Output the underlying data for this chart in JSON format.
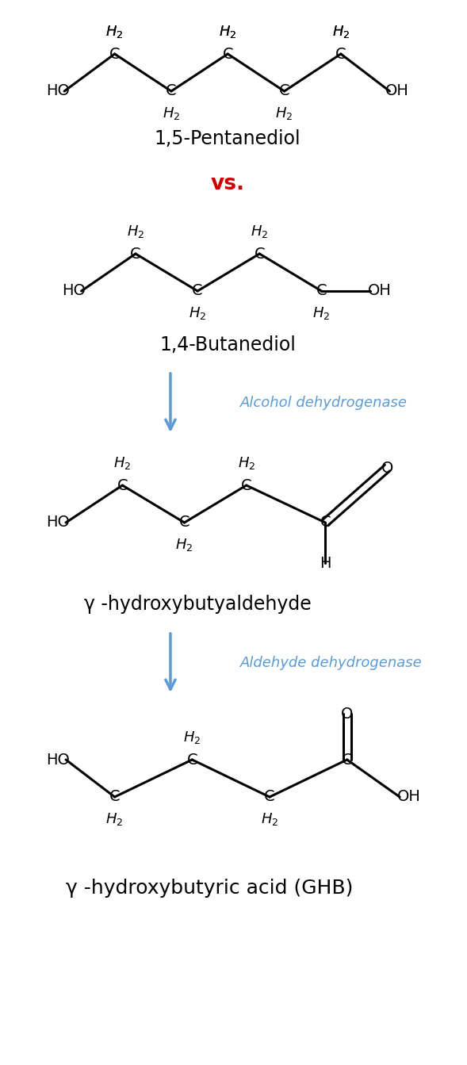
{
  "bg_color": "#ffffff",
  "black": "#000000",
  "red": "#cc0000",
  "blue_arrow": "#5b9bd5",
  "fig_width": 5.89,
  "fig_height": 13.43,
  "pentanediol_label": "1,5-Pentanediol",
  "vs_label": "vs.",
  "butanediol_label": "1,4-Butanediol",
  "arrow1_enzyme": "Alcohol dehydrogenase",
  "hydroxybutyraldehyde_label": "γ -hydroxybutyaldehyde",
  "arrow2_enzyme": "Aldehyde dehydrogenase",
  "ghb_label": "γ -hydroxybutyric acid (GHB)"
}
